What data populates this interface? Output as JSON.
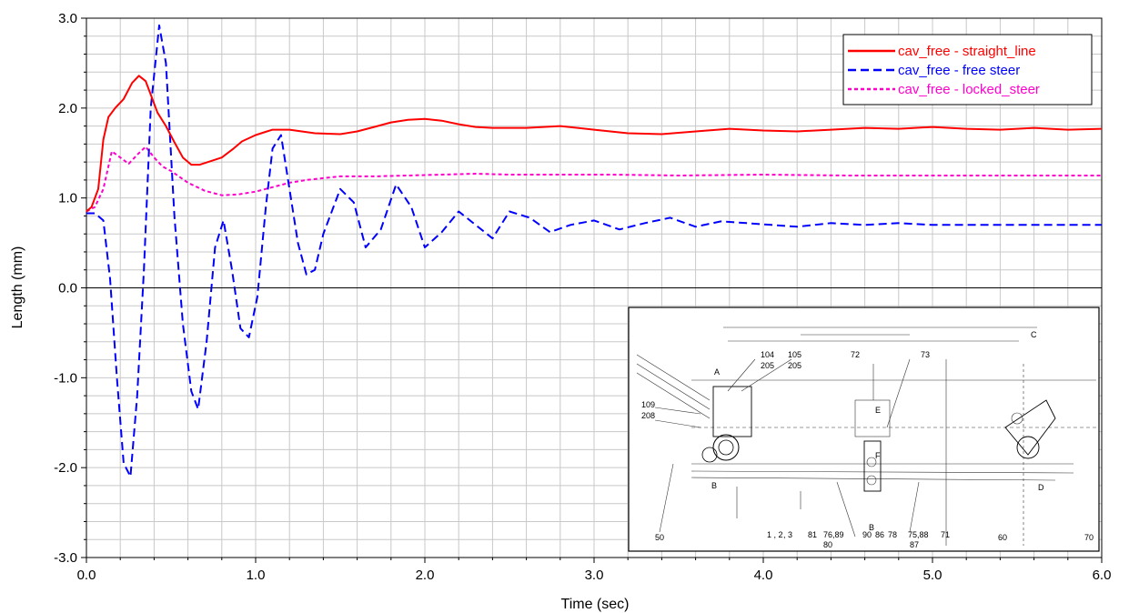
{
  "chart_data": {
    "type": "line",
    "title": "",
    "xlabel": "Time (sec)",
    "ylabel": "Length (mm)",
    "xlim": [
      0.0,
      6.0
    ],
    "ylim": [
      -3.0,
      3.0
    ],
    "x_ticks": [
      "0.0",
      "1.0",
      "2.0",
      "3.0",
      "4.0",
      "5.0",
      "6.0"
    ],
    "y_ticks": [
      "3.0",
      "2.0",
      "1.0",
      "0.0",
      "-1.0",
      "-2.0",
      "-3.0"
    ],
    "grid": true,
    "legend_position": "top-right",
    "series": [
      {
        "name": "cav_free - straight_line",
        "color": "#ff0000",
        "style": "solid",
        "x": [
          0.0,
          0.03,
          0.07,
          0.1,
          0.13,
          0.17,
          0.22,
          0.27,
          0.31,
          0.35,
          0.38,
          0.42,
          0.47,
          0.52,
          0.57,
          0.62,
          0.67,
          0.72,
          0.8,
          0.87,
          0.92,
          1.0,
          1.05,
          1.1,
          1.2,
          1.35,
          1.5,
          1.6,
          1.7,
          1.8,
          1.9,
          2.0,
          2.1,
          2.2,
          2.3,
          2.4,
          2.6,
          2.8,
          3.0,
          3.2,
          3.4,
          3.6,
          3.8,
          4.0,
          4.2,
          4.4,
          4.6,
          4.8,
          5.0,
          5.2,
          5.4,
          5.6,
          5.8,
          6.0
        ],
        "y": [
          0.85,
          0.9,
          1.1,
          1.65,
          1.9,
          2.0,
          2.1,
          2.28,
          2.36,
          2.3,
          2.15,
          1.95,
          1.8,
          1.62,
          1.45,
          1.37,
          1.37,
          1.4,
          1.45,
          1.55,
          1.63,
          1.7,
          1.73,
          1.76,
          1.76,
          1.72,
          1.71,
          1.74,
          1.79,
          1.84,
          1.87,
          1.88,
          1.86,
          1.82,
          1.79,
          1.78,
          1.78,
          1.8,
          1.76,
          1.72,
          1.71,
          1.74,
          1.77,
          1.75,
          1.74,
          1.76,
          1.78,
          1.77,
          1.79,
          1.77,
          1.76,
          1.78,
          1.76,
          1.77
        ]
      },
      {
        "name": "cav_free - free steer",
        "color": "#0000ff",
        "style": "dashed",
        "x": [
          0.0,
          0.05,
          0.1,
          0.14,
          0.18,
          0.22,
          0.26,
          0.3,
          0.34,
          0.38,
          0.43,
          0.47,
          0.52,
          0.57,
          0.62,
          0.66,
          0.71,
          0.76,
          0.81,
          0.86,
          0.91,
          0.96,
          1.01,
          1.06,
          1.1,
          1.15,
          1.2,
          1.25,
          1.3,
          1.35,
          1.4,
          1.5,
          1.58,
          1.65,
          1.74,
          1.83,
          1.92,
          2.0,
          2.1,
          2.2,
          2.3,
          2.4,
          2.5,
          2.62,
          2.74,
          2.86,
          3.0,
          3.15,
          3.3,
          3.45,
          3.6,
          3.75,
          3.9,
          4.05,
          4.2,
          4.4,
          4.6,
          4.8,
          5.0,
          5.2,
          5.4,
          5.6,
          5.8,
          6.0
        ],
        "y": [
          0.83,
          0.83,
          0.75,
          0.1,
          -1.0,
          -1.95,
          -2.1,
          -1.2,
          0.2,
          2.0,
          2.92,
          2.5,
          0.8,
          -0.4,
          -1.15,
          -1.35,
          -0.6,
          0.45,
          0.75,
          0.2,
          -0.45,
          -0.55,
          -0.1,
          0.9,
          1.55,
          1.7,
          1.1,
          0.5,
          0.15,
          0.2,
          0.6,
          1.1,
          0.95,
          0.45,
          0.65,
          1.15,
          0.9,
          0.45,
          0.62,
          0.85,
          0.7,
          0.55,
          0.85,
          0.78,
          0.62,
          0.7,
          0.75,
          0.65,
          0.72,
          0.78,
          0.68,
          0.74,
          0.72,
          0.7,
          0.68,
          0.72,
          0.7,
          0.72,
          0.7,
          0.7,
          0.7,
          0.7,
          0.7,
          0.7
        ]
      },
      {
        "name": "cav_free - locked_steer",
        "color": "#ff00cc",
        "style": "dotted",
        "x": [
          0.0,
          0.05,
          0.1,
          0.15,
          0.2,
          0.25,
          0.3,
          0.35,
          0.4,
          0.45,
          0.5,
          0.6,
          0.7,
          0.8,
          0.9,
          1.0,
          1.1,
          1.2,
          1.3,
          1.4,
          1.5,
          1.7,
          1.9,
          2.1,
          2.3,
          2.5,
          2.8,
          3.1,
          3.5,
          4.0,
          4.5,
          5.0,
          5.5,
          6.0
        ],
        "y": [
          0.85,
          0.9,
          1.1,
          1.52,
          1.45,
          1.38,
          1.48,
          1.57,
          1.45,
          1.35,
          1.3,
          1.17,
          1.08,
          1.03,
          1.04,
          1.07,
          1.12,
          1.17,
          1.2,
          1.22,
          1.24,
          1.24,
          1.25,
          1.26,
          1.27,
          1.26,
          1.26,
          1.26,
          1.25,
          1.26,
          1.25,
          1.25,
          1.25,
          1.25
        ]
      }
    ]
  },
  "inset_drawing": {
    "labels_top": [
      "104",
      "105",
      "72",
      "73"
    ],
    "labels_top2": [
      "205",
      "205"
    ],
    "labels_left": [
      "109",
      "208"
    ],
    "labels_bottom": [
      "50",
      "1 , 2",
      ", 3",
      "81",
      "76,89",
      "90",
      "86",
      "78",
      "75,88",
      "71",
      "60",
      "70"
    ],
    "labels_bottom2": [
      "80",
      "87"
    ],
    "letters": [
      "A",
      "B",
      "C",
      "D",
      "E",
      "F",
      "B"
    ]
  }
}
